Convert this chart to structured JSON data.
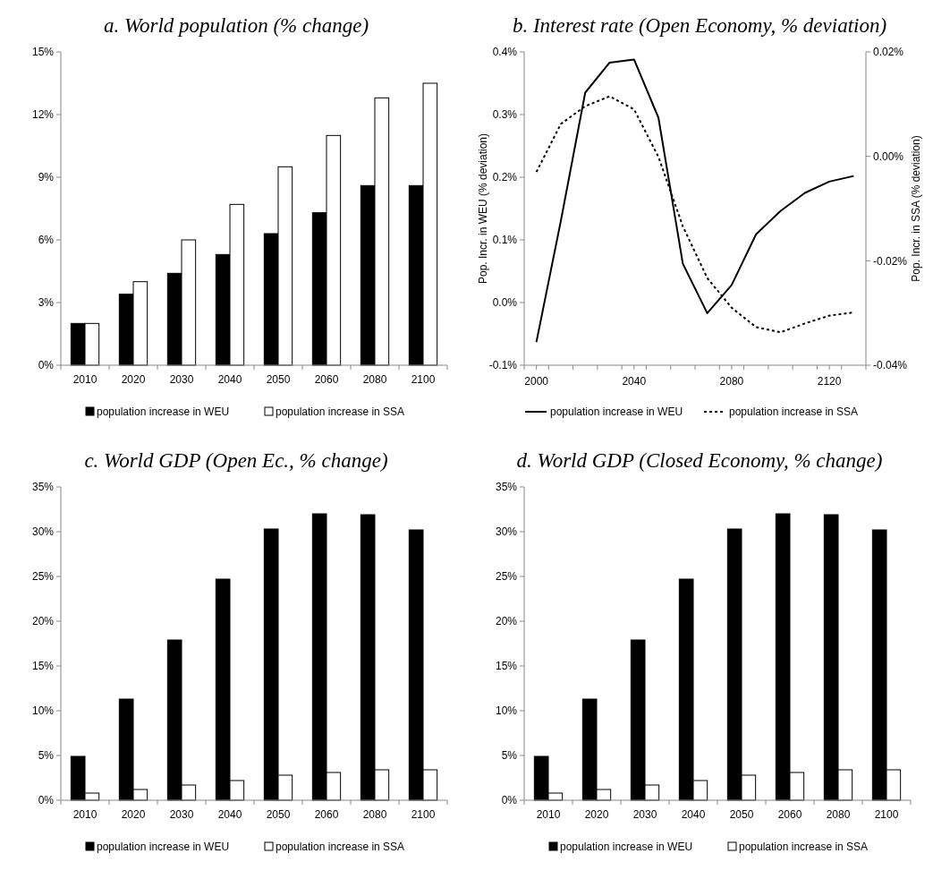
{
  "chart_data": [
    {
      "type": "bar",
      "title": "a. World population (% change)",
      "categories": [
        "2010",
        "2020",
        "2030",
        "2040",
        "2050",
        "2060",
        "2080",
        "2100"
      ],
      "series": [
        {
          "name": "population increase in WEU",
          "color": "#000000",
          "values": [
            2.0,
            3.4,
            4.4,
            5.3,
            6.3,
            7.3,
            8.6,
            8.6
          ]
        },
        {
          "name": "population increase in SSA",
          "color": "#ffffff",
          "values": [
            2.0,
            4.0,
            6.0,
            7.7,
            9.5,
            11.0,
            12.8,
            13.5
          ]
        }
      ],
      "ylim": [
        0,
        15
      ],
      "yticks": [
        {
          "value": 0,
          "label": "0%"
        },
        {
          "value": 3,
          "label": "3%"
        },
        {
          "value": 6,
          "label": "6%"
        },
        {
          "value": 9,
          "label": "9%"
        },
        {
          "value": 12,
          "label": "12%"
        },
        {
          "value": 15,
          "label": "15%"
        }
      ],
      "grid": false,
      "legend": "bottom"
    },
    {
      "type": "line",
      "title": "b. Interest rate (Open Economy, % deviation)",
      "ylabel": "Pop. Incr. in WEU (% deviation)",
      "y2label": "Pop. Incr. in SSA  (% deviation)",
      "x": [
        2000,
        2010,
        2020,
        2030,
        2040,
        2050,
        2060,
        2070,
        2080,
        2090,
        2100,
        2110,
        2120,
        2130
      ],
      "series": [
        {
          "name": "population increase in WEU",
          "color": "#000000",
          "line_style": "solid",
          "values": [
            -0.063,
            0.13,
            0.335,
            0.383,
            0.388,
            0.295,
            0.062,
            -0.017,
            0.028,
            0.109,
            0.146,
            0.175,
            0.193,
            0.202
          ]
        },
        {
          "name": "population increase in SSA",
          "color": "#000000",
          "line_style": "dotted",
          "axis": "y2",
          "values": [
            -0.003,
            0.0062,
            0.0096,
            0.0115,
            0.009,
            -0.0001,
            -0.0134,
            -0.0233,
            -0.029,
            -0.0327,
            -0.0337,
            -0.032,
            -0.0305,
            -0.0299
          ]
        }
      ],
      "xlim": [
        1995,
        2135
      ],
      "xticks": [
        {
          "value": 1995,
          "label": null
        },
        2000,
        {
          "value": 2005,
          "label": null
        },
        {
          "value": 2015,
          "label": null
        },
        {
          "value": 2025,
          "label": null
        },
        {
          "value": 2035,
          "label": null
        },
        2040,
        {
          "value": 2045,
          "label": null
        },
        {
          "value": 2055,
          "label": null
        },
        {
          "value": 2065,
          "label": null
        },
        {
          "value": 2075,
          "label": null
        },
        2080,
        {
          "value": 2085,
          "label": null
        },
        {
          "value": 2095,
          "label": null
        },
        {
          "value": 2105,
          "label": null
        },
        {
          "value": 2115,
          "label": null
        },
        2120,
        {
          "value": 2125,
          "label": null
        },
        {
          "value": 2135,
          "label": null
        }
      ],
      "ylim": [
        -0.1,
        0.4
      ],
      "yticks": [
        {
          "value": -0.1,
          "label": "-0.1%"
        },
        {
          "value": 0,
          "label": "0.0%"
        },
        {
          "value": 0.1,
          "label": "0.1%"
        },
        {
          "value": 0.2,
          "label": "0.2%"
        },
        {
          "value": 0.3,
          "label": "0.3%"
        },
        {
          "value": 0.4,
          "label": "0.4%"
        }
      ],
      "y2lim": [
        -0.04,
        0.02
      ],
      "y2ticks": [
        {
          "value": -0.04,
          "label": "-0.04%"
        },
        {
          "value": -0.02,
          "label": "-0.02%"
        },
        {
          "value": 0,
          "label": "0.00%"
        },
        {
          "value": 0.02,
          "label": "0.02%"
        }
      ],
      "grid": false,
      "legend": "bottom",
      "marker": "none"
    },
    {
      "type": "bar",
      "title": "c. World GDP (Open Ec., % change)",
      "categories": [
        "2010",
        "2020",
        "2030",
        "2040",
        "2050",
        "2060",
        "2080",
        "2100"
      ],
      "series": [
        {
          "name": "population increase in WEU",
          "color": "#000000",
          "values": [
            4.9,
            11.3,
            17.9,
            24.7,
            30.3,
            32.0,
            31.9,
            30.2
          ]
        },
        {
          "name": "population increase in SSA",
          "color": "#ffffff",
          "values": [
            0.8,
            1.2,
            1.7,
            2.2,
            2.8,
            3.1,
            3.4,
            3.4
          ]
        }
      ],
      "ylim": [
        0,
        35
      ],
      "yticks": [
        {
          "value": 0,
          "label": "0%"
        },
        {
          "value": 5,
          "label": "5%"
        },
        {
          "value": 10,
          "label": "10%"
        },
        {
          "value": 15,
          "label": "15%"
        },
        {
          "value": 20,
          "label": "20%"
        },
        {
          "value": 25,
          "label": "25%"
        },
        {
          "value": 30,
          "label": "30%"
        },
        {
          "value": 35,
          "label": "35%"
        }
      ],
      "grid": false,
      "legend": "bottom"
    },
    {
      "type": "bar",
      "title": "d. World GDP (Closed Economy, % change)",
      "categories": [
        "2010",
        "2020",
        "2030",
        "2040",
        "2050",
        "2060",
        "2080",
        "2100"
      ],
      "series": [
        {
          "name": "population increase in WEU",
          "color": "#000000",
          "values": [
            4.9,
            11.3,
            17.9,
            24.7,
            30.3,
            32.0,
            31.9,
            30.2
          ]
        },
        {
          "name": "population increase in SSA",
          "color": "#ffffff",
          "values": [
            0.8,
            1.2,
            1.7,
            2.2,
            2.8,
            3.1,
            3.4,
            3.4
          ]
        }
      ],
      "ylim": [
        0,
        35
      ],
      "yticks": [
        {
          "value": 0,
          "label": "0%"
        },
        {
          "value": 5,
          "label": "5%"
        },
        {
          "value": 10,
          "label": "10%"
        },
        {
          "value": 15,
          "label": "15%"
        },
        {
          "value": 20,
          "label": "20%"
        },
        {
          "value": 25,
          "label": "25%"
        },
        {
          "value": 30,
          "label": "30%"
        },
        {
          "value": 35,
          "label": "35%"
        }
      ],
      "grid": false,
      "legend": "bottom"
    }
  ]
}
